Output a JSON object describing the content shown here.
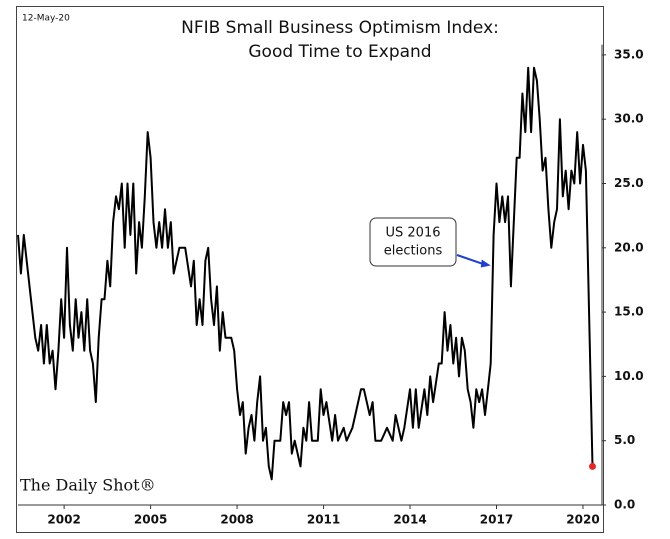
{
  "chart_data": {
    "type": "line",
    "date": "12-May-20",
    "title": [
      "NFIB Small Business Optimism Index:",
      "Good Time to Expand"
    ],
    "source": "The Daily Shot®",
    "annotation": {
      "lines": [
        "US 2016",
        "elections"
      ],
      "x": 2016.8,
      "y": 18.7
    },
    "series": [
      {
        "color": "#000000",
        "marker_color": "#e32626",
        "x": [
          2000.4,
          2000.5,
          2000.6,
          2000.75,
          2000.9,
          2001.0,
          2001.1,
          2001.2,
          2001.3,
          2001.4,
          2001.5,
          2001.6,
          2001.7,
          2001.8,
          2001.9,
          2002.0,
          2002.1,
          2002.2,
          2002.3,
          2002.4,
          2002.5,
          2002.6,
          2002.7,
          2002.8,
          2002.9,
          2003.0,
          2003.1,
          2003.2,
          2003.3,
          2003.4,
          2003.5,
          2003.6,
          2003.7,
          2003.8,
          2003.9,
          2004.0,
          2004.1,
          2004.2,
          2004.3,
          2004.4,
          2004.5,
          2004.6,
          2004.7,
          2004.8,
          2004.9,
          2005.0,
          2005.1,
          2005.2,
          2005.3,
          2005.4,
          2005.5,
          2005.6,
          2005.7,
          2005.8,
          2006.0,
          2006.2,
          2006.4,
          2006.5,
          2006.6,
          2006.7,
          2006.8,
          2006.9,
          2007.0,
          2007.1,
          2007.2,
          2007.3,
          2007.4,
          2007.5,
          2007.6,
          2007.8,
          2007.9,
          2008.0,
          2008.1,
          2008.2,
          2008.3,
          2008.4,
          2008.5,
          2008.6,
          2008.7,
          2008.8,
          2008.9,
          2009.0,
          2009.1,
          2009.2,
          2009.3,
          2009.5,
          2009.6,
          2009.7,
          2009.8,
          2009.9,
          2010.0,
          2010.2,
          2010.3,
          2010.4,
          2010.5,
          2010.6,
          2010.8,
          2010.9,
          2011.0,
          2011.1,
          2011.3,
          2011.4,
          2011.5,
          2011.7,
          2011.8,
          2012.0,
          2012.1,
          2012.3,
          2012.4,
          2012.6,
          2012.7,
          2012.8,
          2013.0,
          2013.2,
          2013.4,
          2013.5,
          2013.7,
          2013.8,
          2014.0,
          2014.1,
          2014.2,
          2014.3,
          2014.5,
          2014.6,
          2014.7,
          2014.8,
          2015.0,
          2015.1,
          2015.2,
          2015.3,
          2015.4,
          2015.5,
          2015.6,
          2015.7,
          2015.8,
          2015.9,
          2016.0,
          2016.1,
          2016.2,
          2016.3,
          2016.4,
          2016.5,
          2016.6,
          2016.7,
          2016.8,
          2016.9,
          2017.0,
          2017.1,
          2017.2,
          2017.3,
          2017.4,
          2017.5,
          2017.6,
          2017.7,
          2017.8,
          2017.9,
          2018.0,
          2018.1,
          2018.2,
          2018.3,
          2018.4,
          2018.5,
          2018.6,
          2018.7,
          2018.8,
          2018.9,
          2019.0,
          2019.1,
          2019.2,
          2019.3,
          2019.4,
          2019.5,
          2019.6,
          2019.7,
          2019.8,
          2019.9,
          2020.0,
          2020.1,
          2020.33
        ],
        "values": [
          21,
          18,
          21,
          18,
          15,
          13,
          12,
          14,
          11,
          14,
          11,
          12,
          9,
          12,
          16,
          13,
          20,
          14,
          12,
          16,
          13,
          15,
          12,
          16,
          12,
          11,
          8,
          13,
          16,
          16,
          19,
          17,
          22,
          24,
          23,
          25,
          20,
          25,
          21,
          25,
          18,
          22,
          20,
          24,
          29,
          27,
          22,
          20,
          22,
          20,
          23,
          20,
          22,
          18,
          20,
          20,
          17,
          19,
          14,
          16,
          14,
          19,
          20,
          16,
          14,
          17,
          12,
          15,
          13,
          13,
          12,
          9,
          7,
          8,
          4,
          6,
          7,
          5,
          8,
          10,
          5,
          6,
          3,
          2,
          5,
          5,
          8,
          7,
          8,
          4,
          5,
          3,
          6,
          5,
          8,
          5,
          5,
          9,
          7,
          8,
          5,
          7,
          5,
          6,
          5,
          6,
          7,
          9,
          9,
          7,
          8,
          5,
          5,
          6,
          5,
          7,
          5,
          6,
          9,
          6,
          9,
          6,
          9,
          7,
          10,
          8,
          11,
          11,
          15,
          12,
          14,
          11,
          13,
          10,
          13,
          12,
          9,
          8,
          6,
          9,
          8,
          9,
          7,
          9,
          11,
          21,
          25,
          22,
          24,
          22,
          24,
          17,
          22,
          27,
          27,
          32,
          29,
          34,
          29,
          34,
          33,
          30,
          26,
          27,
          23,
          20,
          22,
          23,
          30,
          24,
          26,
          23,
          26,
          25,
          29,
          25,
          28,
          26,
          3
        ]
      }
    ],
    "xlim": [
      2000.4,
      2020.66
    ],
    "xticks": [
      2002,
      2005,
      2008,
      2011,
      2014,
      2017,
      2020
    ],
    "ylim": [
      0,
      35.8
    ],
    "yticks": [
      {
        "value": 0,
        "label": "0.0"
      },
      {
        "value": 5,
        "label": "5.0"
      },
      {
        "value": 10,
        "label": "10.0"
      },
      {
        "value": 15,
        "label": "15.0"
      },
      {
        "value": 20,
        "label": "20.0"
      },
      {
        "value": 25,
        "label": "25.0"
      },
      {
        "value": 30,
        "label": "30.0"
      },
      {
        "value": 35,
        "label": "35.0"
      }
    ]
  }
}
